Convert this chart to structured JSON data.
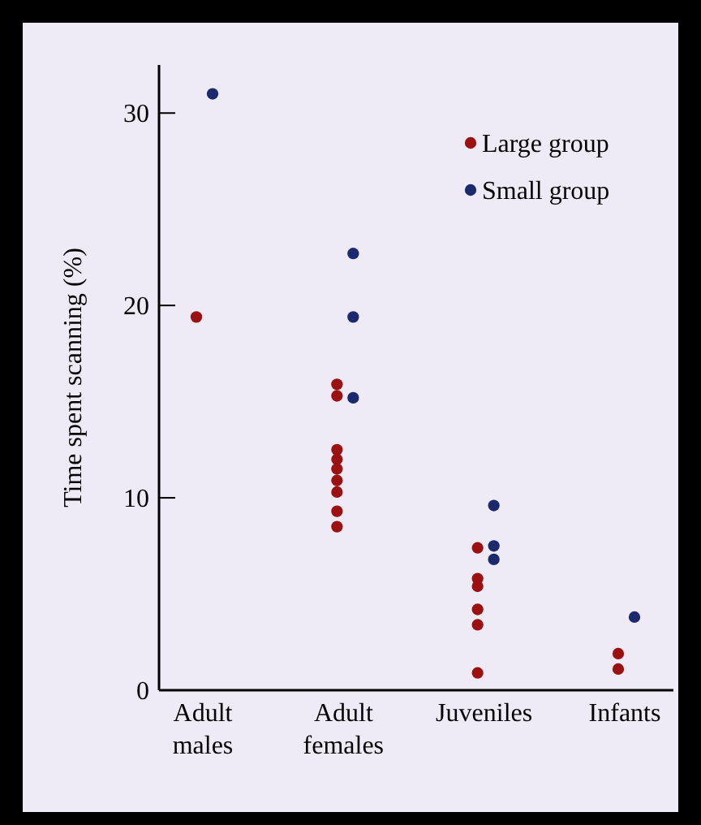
{
  "chart_data": {
    "type": "scatter",
    "ylabel": "Time spent scanning (%)",
    "categories": [
      "Adult males",
      "Adult females",
      "Juveniles",
      "Infants"
    ],
    "ylim": [
      0,
      32.5
    ],
    "yticks": [
      0,
      10,
      20,
      30
    ],
    "legend": "top right",
    "marker": "circle",
    "grid": false,
    "series": [
      {
        "name": "Large group",
        "color": "#9b1010",
        "x": [
          "Adult males",
          "Adult females",
          "Adult females",
          "Adult females",
          "Adult females",
          "Adult females",
          "Adult females",
          "Adult females",
          "Adult females",
          "Adult females",
          "Juveniles",
          "Juveniles",
          "Juveniles",
          "Juveniles",
          "Juveniles",
          "Juveniles",
          "Infants",
          "Infants"
        ],
        "values": [
          19.4,
          15.9,
          15.3,
          12.5,
          12.0,
          11.5,
          10.9,
          10.3,
          9.3,
          8.5,
          7.4,
          5.8,
          5.4,
          4.2,
          3.4,
          0.9,
          1.9,
          1.1
        ]
      },
      {
        "name": "Small group",
        "color": "#1a2a6c",
        "x": [
          "Adult males",
          "Adult females",
          "Adult females",
          "Adult females",
          "Juveniles",
          "Juveniles",
          "Juveniles",
          "Infants"
        ],
        "values": [
          31.0,
          22.7,
          19.4,
          15.2,
          9.6,
          7.5,
          6.8,
          3.8
        ]
      }
    ]
  }
}
